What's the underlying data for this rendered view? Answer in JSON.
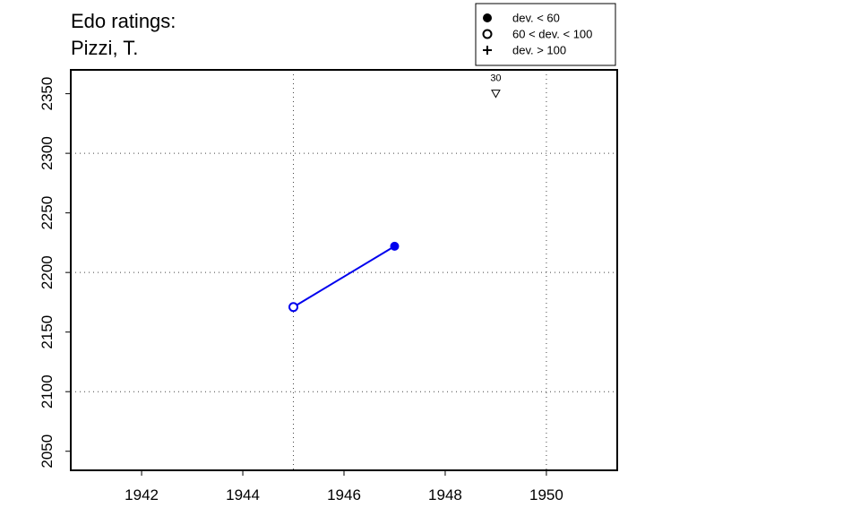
{
  "chart_data": {
    "type": "line",
    "title": [
      "Edo ratings:",
      "Pizzi, T."
    ],
    "x": [
      1945,
      1947
    ],
    "series": [
      {
        "color": "#0000ee",
        "values": [
          2171,
          2222
        ],
        "markers": [
          "open",
          "filled"
        ]
      }
    ],
    "annotation": {
      "x": 1949,
      "y": 2350,
      "text": "30"
    },
    "legend": {
      "position": "top-right",
      "entries": [
        {
          "symbol": "filled",
          "label": "dev. < 60"
        },
        {
          "symbol": "open",
          "label": "60 < dev. < 100"
        },
        {
          "symbol": "plus",
          "label": "dev. > 100"
        }
      ]
    },
    "xlim": [
      1940.6,
      1951.4
    ],
    "xticks": [
      1942,
      1944,
      1946,
      1948,
      1950
    ],
    "ylim": [
      2034,
      2370
    ],
    "yticks": [
      2050,
      2100,
      2150,
      2200,
      2250,
      2300,
      2350
    ],
    "xgrid": [
      1945,
      1950
    ],
    "ygrid": [
      2100,
      2200,
      2300
    ]
  }
}
